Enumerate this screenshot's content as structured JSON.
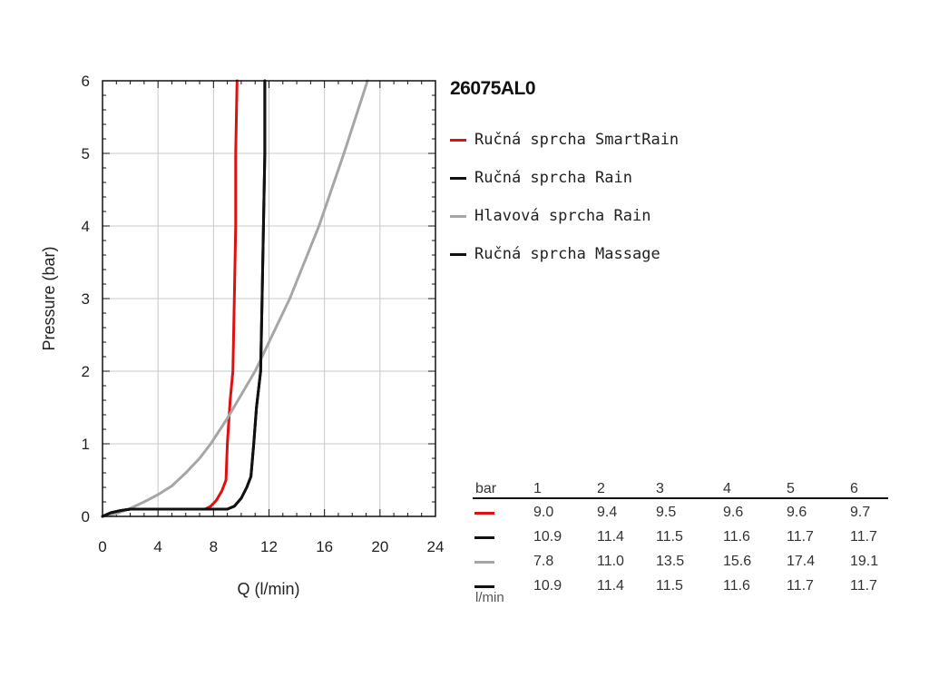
{
  "chart_data": {
    "type": "line",
    "title": "26075AL0",
    "xlabel": "Q (l/min)",
    "ylabel": "Pressure (bar)",
    "xlim": [
      0,
      24
    ],
    "ylim": [
      0,
      6
    ],
    "xticks": [
      0,
      4,
      8,
      12,
      16,
      20,
      24
    ],
    "yticks": [
      0,
      1,
      2,
      3,
      4,
      5,
      6
    ],
    "grid": true,
    "legend_position": "right",
    "series": [
      {
        "name": "Ručná sprcha SmartRain",
        "color": "#e01010",
        "x": [
          0,
          0.6,
          1.3,
          2.0,
          4.0,
          6.0,
          7.4,
          7.8,
          8.2,
          8.6,
          8.9,
          9.0,
          9.2,
          9.4,
          9.5,
          9.6,
          9.6,
          9.7
        ],
        "y": [
          0,
          0.05,
          0.08,
          0.1,
          0.1,
          0.1,
          0.1,
          0.14,
          0.22,
          0.35,
          0.5,
          1.0,
          1.6,
          2.0,
          3.0,
          4.0,
          5.0,
          6.0
        ]
      },
      {
        "name": "Ručná sprcha Rain",
        "color": "#111111",
        "x": [
          0,
          0.6,
          1.3,
          2.0,
          5.0,
          8.0,
          9.0,
          9.5,
          10.0,
          10.4,
          10.7,
          10.9,
          11.1,
          11.4,
          11.5,
          11.6,
          11.7,
          11.7
        ],
        "y": [
          0,
          0.05,
          0.08,
          0.1,
          0.1,
          0.1,
          0.1,
          0.14,
          0.25,
          0.4,
          0.55,
          1.0,
          1.5,
          2.0,
          3.0,
          4.0,
          5.0,
          6.0
        ]
      },
      {
        "name": "Hlavová sprcha Rain",
        "color": "#a6a6a6",
        "x": [
          0,
          1.0,
          2.0,
          3.0,
          4.0,
          5.0,
          6.0,
          7.0,
          7.8,
          9.0,
          11.0,
          13.5,
          15.6,
          17.4,
          19.1
        ],
        "y": [
          0,
          0.04,
          0.11,
          0.2,
          0.3,
          0.42,
          0.6,
          0.8,
          1.0,
          1.35,
          2.0,
          3.0,
          4.0,
          5.0,
          6.0
        ]
      },
      {
        "name": "Ručná sprcha Massage",
        "color": "#111111",
        "x": [
          0,
          0.6,
          1.3,
          2.0,
          5.0,
          8.0,
          9.0,
          9.5,
          10.0,
          10.4,
          10.7,
          10.9,
          11.1,
          11.4,
          11.5,
          11.6,
          11.7,
          11.7
        ],
        "y": [
          0,
          0.05,
          0.08,
          0.1,
          0.1,
          0.1,
          0.1,
          0.14,
          0.25,
          0.4,
          0.55,
          1.0,
          1.5,
          2.0,
          3.0,
          4.0,
          5.0,
          6.0
        ]
      }
    ]
  },
  "table": {
    "header_label": "bar",
    "columns": [
      "1",
      "2",
      "3",
      "4",
      "5",
      "6"
    ],
    "unit_label": "l/min",
    "rows": [
      {
        "color": "#e01010",
        "values": [
          "9.0",
          "9.4",
          "9.5",
          "9.6",
          "9.6",
          "9.7"
        ]
      },
      {
        "color": "#111111",
        "values": [
          "10.9",
          "11.4",
          "11.5",
          "11.6",
          "11.7",
          "11.7"
        ]
      },
      {
        "color": "#a6a6a6",
        "values": [
          "7.8",
          "11.0",
          "13.5",
          "15.6",
          "17.4",
          "19.1"
        ]
      },
      {
        "color": "#111111",
        "values": [
          "10.9",
          "11.4",
          "11.5",
          "11.6",
          "11.7",
          "11.7"
        ]
      }
    ]
  }
}
